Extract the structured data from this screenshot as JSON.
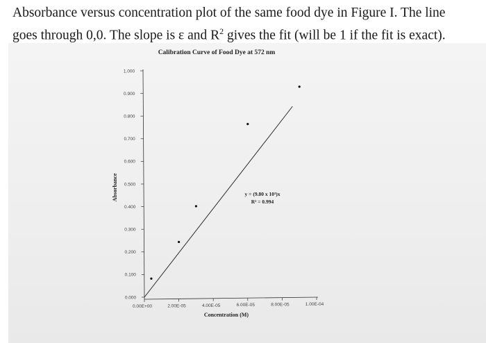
{
  "header": {
    "line1": "Absorbance versus concentration plot of the same food dye in Figure I. The line",
    "line2_prefix": "goes through 0,0.  The slope is ε and R",
    "line2_sup": "2",
    "line2_suffix": " gives the fit (will be 1 if the fit is exact)."
  },
  "chart_data": {
    "type": "scatter",
    "title": "Calibration Curve of Food Dye at 572 nm",
    "xlabel": "Concentration (M)",
    "ylabel": "Absorbance",
    "xlim": [
      0,
      0.0001
    ],
    "ylim": [
      0,
      1.0
    ],
    "x_tick_labels": [
      "0.00E+00",
      "2.00E-05",
      "4.00E-05",
      "6.00E-05",
      "8.00E-05",
      "1.00E-04"
    ],
    "y_tick_labels": [
      "0.000",
      "0.100",
      "0.200",
      "0.300",
      "0.400",
      "0.500",
      "0.600",
      "0.700",
      "0.800",
      "0.900",
      "1.000"
    ],
    "series": [
      {
        "x": [
          4e-06,
          2e-05,
          3e-05,
          6e-05,
          9e-05
        ],
        "y": [
          0.082,
          0.244,
          0.402,
          0.765,
          0.93
        ]
      }
    ],
    "trendline": {
      "slope": 9800,
      "intercept": 0,
      "x_end": 8.6e-05
    },
    "equation_label": "y = (9.80 x 10³)x",
    "r2_label": "R² = 0.994",
    "grid": false
  }
}
